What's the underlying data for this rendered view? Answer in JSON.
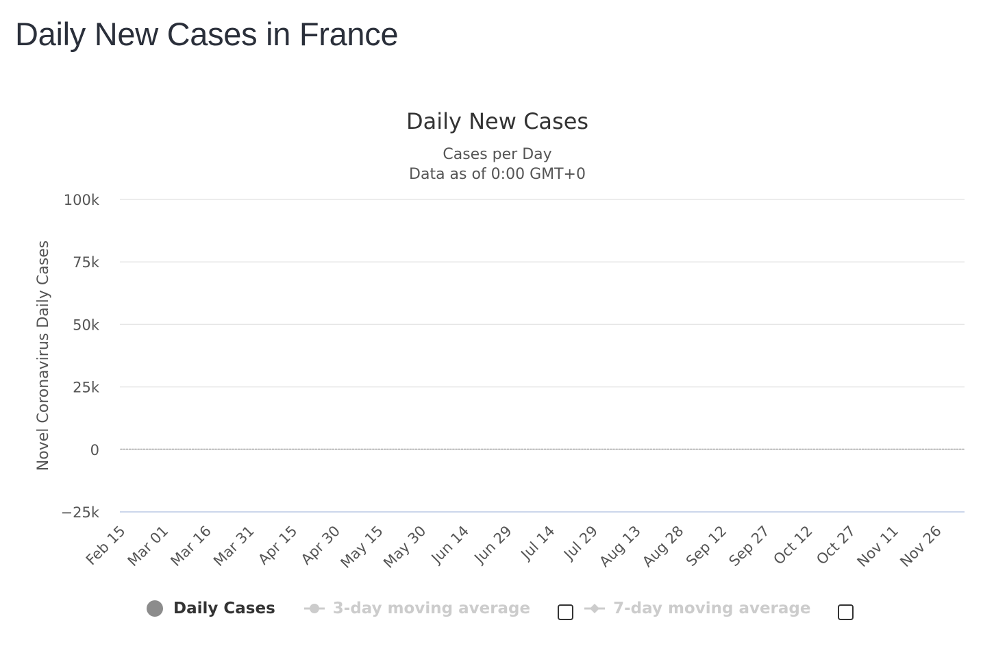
{
  "page": {
    "heading": "Daily New Cases in France"
  },
  "legend": {
    "items": [
      {
        "label": "Daily Cases",
        "active": true
      },
      {
        "label": "3-day moving average",
        "active": false
      },
      {
        "label": "7-day moving average",
        "active": false
      }
    ]
  },
  "colors": {
    "bars": "#8c8c8c",
    "grid": "#e6e6e6",
    "zero_line": "#ccd6eb",
    "text": "#333333",
    "axis_text": "#555555",
    "inactive": "#cccccc"
  },
  "chart_data": {
    "type": "bar",
    "title": "Daily New Cases",
    "subtitle": [
      "Cases per Day",
      "Data as of 0:00 GMT+0"
    ],
    "ylabel": "Novel Coronavirus Daily Cases",
    "xlabel": "",
    "ylim": [
      -25000,
      100000
    ],
    "yticks": [
      -25000,
      0,
      25000,
      50000,
      75000,
      100000
    ],
    "ytick_labels": [
      "−25k",
      "0",
      "25k",
      "50k",
      "75k",
      "100k"
    ],
    "xtick_labels": [
      "Feb 15",
      "Mar 01",
      "Mar 16",
      "Mar 31",
      "Apr 15",
      "Apr 30",
      "May 15",
      "May 30",
      "Jun 14",
      "Jun 29",
      "Jul 14",
      "Jul 29",
      "Aug 13",
      "Aug 28",
      "Sep 12",
      "Sep 27",
      "Oct 12",
      "Oct 27",
      "Nov 11",
      "Nov 26"
    ],
    "x_start": "Feb 15",
    "x_end": "Nov 30",
    "grid": true,
    "legend_position": "bottom",
    "series": [
      {
        "name": "Daily Cases",
        "values": [
          0,
          0,
          0,
          0,
          0,
          0,
          0,
          0,
          0,
          0,
          0,
          0,
          0,
          0,
          0,
          0,
          0,
          0,
          0,
          0,
          0,
          0,
          0,
          0,
          0,
          0,
          0,
          0,
          0,
          0,
          0,
          0,
          0,
          0,
          0,
          0,
          0,
          0,
          0,
          0,
          0,
          0,
          0,
          0,
          0,
          0,
          0,
          0,
          0,
          0,
          0,
          0,
          0,
          0,
          0,
          0,
          0,
          0,
          0,
          0,
          0,
          0,
          0,
          0,
          0,
          0,
          0,
          0,
          0,
          0,
          0,
          0,
          0,
          0,
          0,
          0,
          0,
          0,
          0,
          0,
          0,
          0,
          0,
          0,
          0,
          0,
          0,
          0,
          0,
          0,
          0,
          0,
          0,
          0,
          0,
          0,
          0,
          0,
          0,
          0,
          0,
          0,
          0,
          0,
          0,
          0,
          0,
          0,
          0,
          0,
          0,
          0,
          0,
          0,
          0,
          0,
          0,
          0,
          0,
          0,
          0,
          0,
          0,
          0,
          0,
          0,
          0,
          0,
          0,
          0,
          0,
          0,
          0,
          0,
          0,
          0,
          0,
          0,
          0,
          0,
          0,
          0,
          0,
          0,
          0,
          0,
          0,
          0,
          0,
          0,
          0,
          0,
          0,
          0,
          0,
          0,
          0,
          0,
          0,
          0,
          0,
          0,
          0,
          0,
          0,
          0,
          0,
          0,
          0,
          0,
          0,
          0,
          0,
          0,
          0,
          0,
          0,
          0,
          0,
          0,
          0,
          0,
          0,
          0,
          0,
          0,
          0,
          0,
          0,
          0,
          0,
          0,
          0,
          0,
          0,
          0,
          0,
          0,
          0,
          0,
          0,
          0,
          0,
          0,
          0,
          0,
          0,
          0,
          0,
          0,
          0,
          0,
          0,
          0,
          0,
          0,
          0,
          0,
          0,
          0,
          0,
          0,
          0,
          0,
          0,
          0,
          0,
          0,
          0,
          0,
          0,
          0,
          0,
          0,
          0,
          0,
          0,
          0,
          0,
          0,
          0,
          0,
          0,
          0,
          0,
          0,
          0,
          0,
          0,
          0,
          0,
          0,
          0,
          0,
          0,
          0,
          0,
          0,
          0,
          0,
          0,
          0,
          0,
          0,
          0,
          0,
          0,
          0,
          0,
          0,
          0,
          0,
          0,
          0,
          0,
          0,
          0,
          0,
          0,
          0,
          0,
          0,
          0,
          0,
          0,
          0,
          0,
          0,
          0,
          0,
          0,
          0,
          0,
          0,
          0
        ]
      }
    ]
  }
}
